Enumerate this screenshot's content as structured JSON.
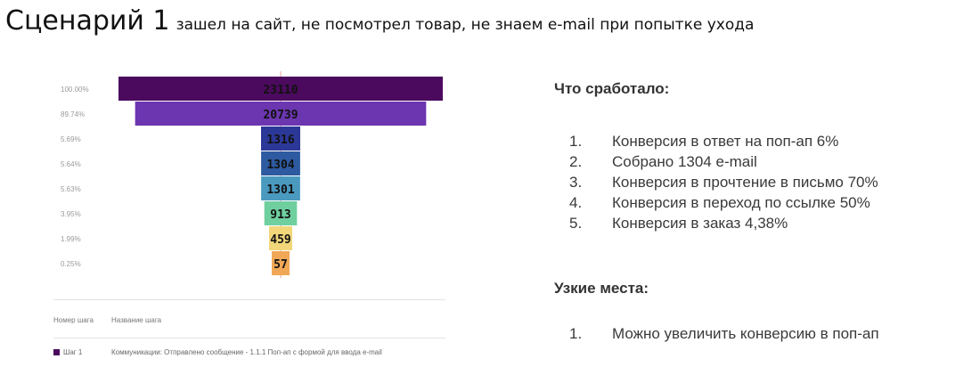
{
  "header": {
    "title": "Сценарий 1",
    "subtitle": "зашел на сайт, не посмотрел товар, не знаем e-mail при попытке ухода"
  },
  "chart_data": {
    "type": "bar",
    "orientation": "funnel",
    "percent_labels": [
      "100.00%",
      "89.74%",
      "5.69%",
      "5.64%",
      "5.63%",
      "3.95%",
      "1.99%",
      "0.25%"
    ],
    "values": [
      23110,
      20739,
      1316,
      1304,
      1301,
      913,
      459,
      57
    ],
    "colors": [
      "#4b0a5e",
      "#6b36b0",
      "#2c3898",
      "#2d5aa0",
      "#4a99bf",
      "#6fcf9f",
      "#f1d77a",
      "#f0a857"
    ]
  },
  "table": {
    "headers": [
      "Номер шага",
      "Название шага"
    ],
    "rows": [
      {
        "step": "Шаг 1",
        "name": "Коммуникации: Отправлено сообщение - 1.1.1 Поп-ап с формой для ввода e-mail",
        "color": "#4b0a5e"
      }
    ]
  },
  "worked": {
    "title": "Что сработало:",
    "items": [
      {
        "num": "1.",
        "text": "Конверсия в ответ на поп-ап 6%"
      },
      {
        "num": "2.",
        "text": "Собрано 1304 e-mail"
      },
      {
        "num": "3.",
        "text": "Конверсия в прочтение в письмо 70%"
      },
      {
        "num": "4.",
        "text": "Конверсия в переход по ссылке 50%"
      },
      {
        "num": "5.",
        "text": "Конверсия в заказ 4,38%"
      }
    ]
  },
  "bottlenecks": {
    "title": "Узкие места:",
    "items": [
      {
        "num": "1.",
        "text": "Можно увеличить конверсию в поп-ап"
      }
    ]
  }
}
